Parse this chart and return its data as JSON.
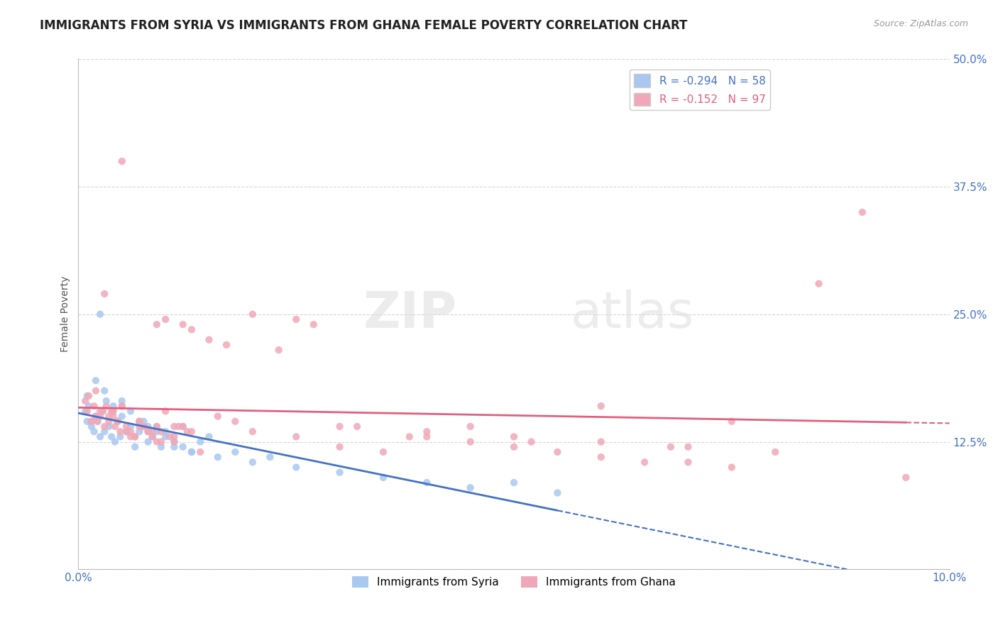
{
  "title": "IMMIGRANTS FROM SYRIA VS IMMIGRANTS FROM GHANA FEMALE POVERTY CORRELATION CHART",
  "source": "Source: ZipAtlas.com",
  "ylabel": "Female Poverty",
  "xlim": [
    0.0,
    10.0
  ],
  "ylim": [
    0.0,
    50.0
  ],
  "yticks": [
    0.0,
    12.5,
    25.0,
    37.5,
    50.0
  ],
  "ytick_labels": [
    "",
    "12.5%",
    "25.0%",
    "37.5%",
    "50.0%"
  ],
  "syria_color": "#a8c8f0",
  "ghana_color": "#f0a8b8",
  "syria_line_color": "#4472c4",
  "ghana_line_color": "#e06080",
  "syria_R": -0.294,
  "syria_N": 58,
  "ghana_R": -0.152,
  "ghana_N": 97,
  "watermark_zip": "ZIP",
  "watermark_atlas": "atlas",
  "legend_syria": "Immigrants from Syria",
  "legend_ghana": "Immigrants from Ghana",
  "background_color": "#ffffff",
  "grid_color": "#cccccc",
  "title_color": "#222222",
  "tick_color": "#4472c4",
  "syria_scatter_x": [
    0.08,
    0.1,
    0.12,
    0.15,
    0.18,
    0.2,
    0.22,
    0.25,
    0.28,
    0.3,
    0.32,
    0.35,
    0.38,
    0.4,
    0.42,
    0.45,
    0.48,
    0.5,
    0.55,
    0.6,
    0.65,
    0.7,
    0.75,
    0.8,
    0.85,
    0.9,
    0.95,
    1.0,
    1.1,
    1.2,
    1.3,
    1.4,
    1.5,
    1.6,
    1.8,
    2.0,
    2.2,
    2.5,
    3.0,
    3.5,
    4.0,
    4.5,
    5.0,
    5.5,
    0.1,
    0.2,
    0.3,
    0.4,
    0.5,
    0.6,
    0.7,
    0.8,
    0.9,
    1.0,
    1.1,
    1.2,
    1.3,
    0.25
  ],
  "syria_scatter_y": [
    15.5,
    14.5,
    16.0,
    14.0,
    13.5,
    15.0,
    14.5,
    13.0,
    15.5,
    13.5,
    16.5,
    14.0,
    13.0,
    15.5,
    12.5,
    14.5,
    13.0,
    15.0,
    13.5,
    14.0,
    12.0,
    13.5,
    14.5,
    12.5,
    13.0,
    14.0,
    12.0,
    13.5,
    12.0,
    14.0,
    11.5,
    12.5,
    13.0,
    11.0,
    11.5,
    10.5,
    11.0,
    10.0,
    9.5,
    9.0,
    8.5,
    8.0,
    8.5,
    7.5,
    17.0,
    18.5,
    17.5,
    16.0,
    16.5,
    15.5,
    14.5,
    14.0,
    13.5,
    13.0,
    12.5,
    12.0,
    11.5,
    25.0
  ],
  "ghana_scatter_x": [
    0.08,
    0.1,
    0.12,
    0.15,
    0.18,
    0.2,
    0.22,
    0.25,
    0.28,
    0.3,
    0.32,
    0.35,
    0.38,
    0.4,
    0.42,
    0.45,
    0.48,
    0.5,
    0.55,
    0.6,
    0.65,
    0.7,
    0.75,
    0.8,
    0.85,
    0.9,
    0.95,
    1.0,
    1.1,
    1.2,
    1.3,
    1.5,
    1.7,
    2.0,
    2.3,
    2.7,
    3.2,
    3.8,
    4.5,
    5.2,
    6.0,
    6.8,
    7.5,
    0.2,
    0.3,
    0.4,
    0.5,
    0.6,
    0.7,
    0.8,
    0.9,
    1.0,
    1.1,
    1.2,
    1.3,
    0.15,
    0.25,
    0.35,
    0.45,
    0.55,
    0.65,
    0.75,
    0.85,
    0.95,
    1.05,
    1.15,
    1.25,
    2.5,
    3.0,
    4.0,
    5.0,
    6.0,
    7.0,
    8.0,
    0.5,
    0.7,
    0.9,
    1.1,
    1.4,
    1.6,
    1.8,
    2.0,
    2.5,
    3.0,
    3.5,
    4.0,
    4.5,
    5.0,
    5.5,
    6.0,
    6.5,
    7.0,
    7.5,
    8.5,
    9.0,
    9.5
  ],
  "ghana_scatter_y": [
    16.5,
    15.5,
    17.0,
    14.5,
    16.0,
    17.5,
    14.5,
    15.0,
    15.5,
    14.0,
    16.0,
    14.5,
    15.5,
    15.0,
    14.0,
    14.5,
    13.5,
    16.0,
    14.0,
    13.5,
    13.0,
    14.5,
    14.0,
    13.5,
    13.0,
    14.0,
    13.5,
    15.5,
    14.0,
    24.0,
    23.5,
    22.5,
    22.0,
    25.0,
    21.5,
    24.0,
    14.0,
    13.0,
    14.0,
    12.5,
    16.0,
    12.0,
    14.5,
    15.0,
    27.0,
    15.5,
    16.0,
    13.0,
    14.0,
    13.5,
    24.0,
    24.5,
    13.0,
    14.0,
    13.5,
    14.5,
    15.5,
    15.0,
    14.5,
    13.5,
    13.0,
    14.0,
    13.5,
    12.5,
    13.0,
    14.0,
    13.5,
    24.5,
    14.0,
    13.5,
    13.0,
    12.5,
    12.0,
    11.5,
    40.0,
    14.5,
    12.5,
    12.5,
    11.5,
    15.0,
    14.5,
    13.5,
    13.0,
    12.0,
    11.5,
    13.0,
    12.5,
    12.0,
    11.5,
    11.0,
    10.5,
    10.5,
    10.0,
    28.0,
    35.0,
    9.0
  ]
}
